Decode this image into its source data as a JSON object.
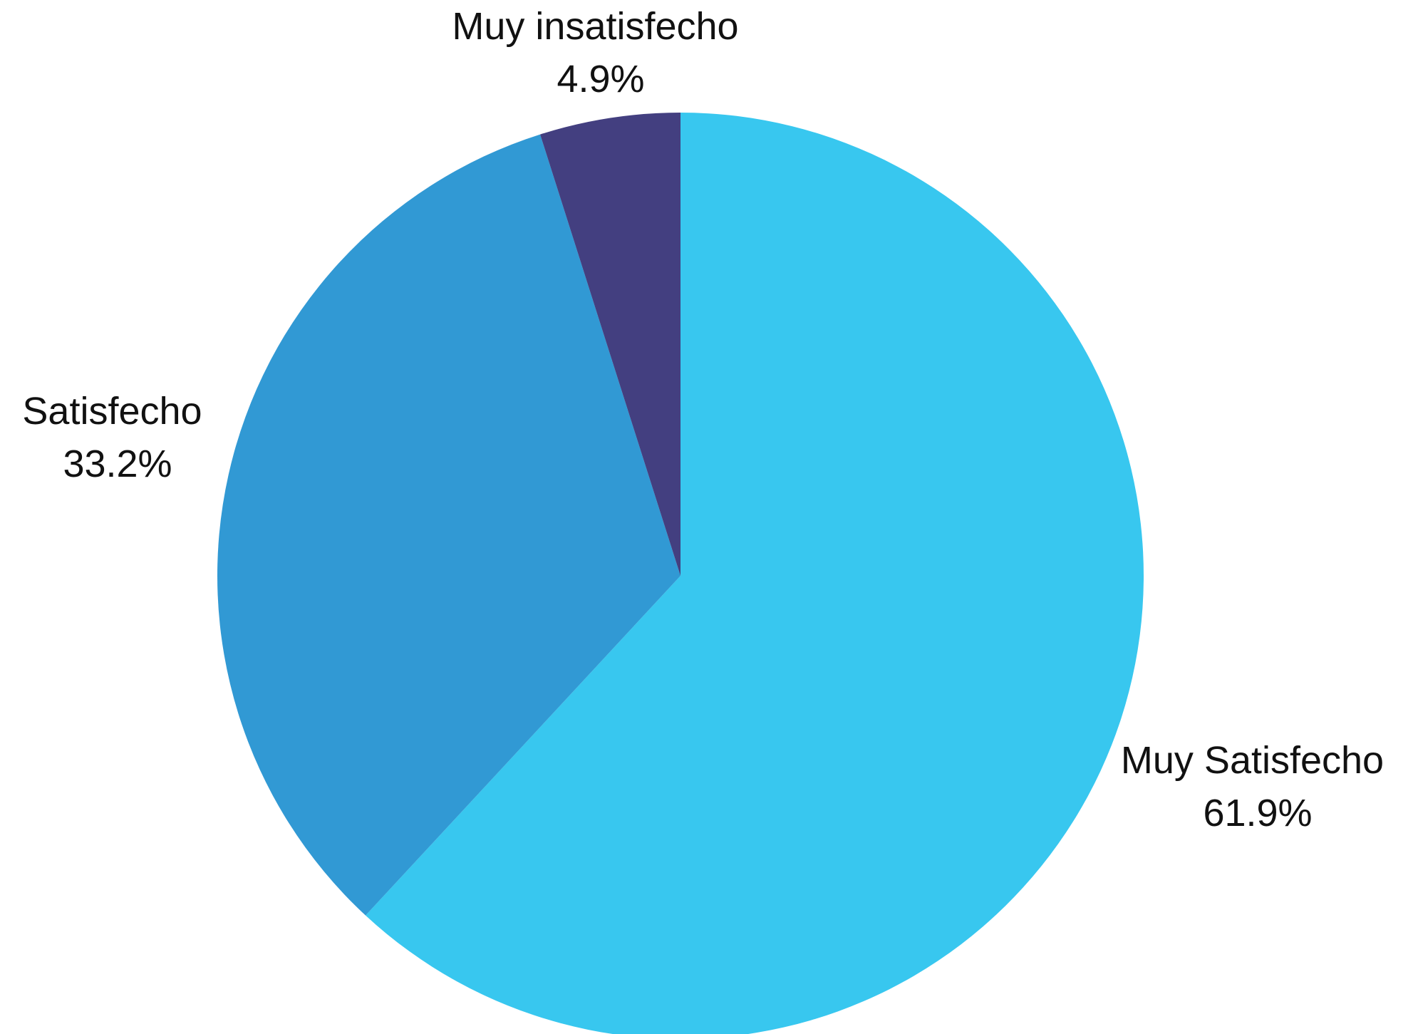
{
  "chart_data": {
    "type": "pie",
    "title": "",
    "start_angle_deg": 0,
    "direction": "clockwise",
    "slices": [
      {
        "label": "Muy Satisfecho",
        "value": 61.9,
        "value_label": "61.9%",
        "color": "#38c7ef"
      },
      {
        "label": "Satisfecho",
        "value": 33.2,
        "value_label": "33.2%",
        "color": "#3199d4"
      },
      {
        "label": "Muy insatisfecho",
        "value": 4.9,
        "value_label": "4.9%",
        "color": "#433f80"
      }
    ]
  }
}
